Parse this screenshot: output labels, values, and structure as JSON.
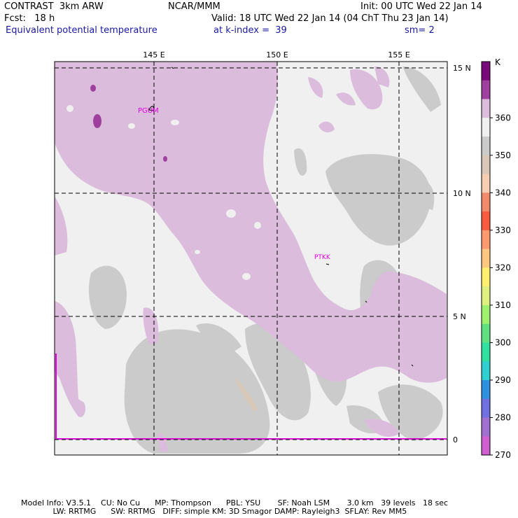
{
  "header": {
    "model": "CONTRAST  3km ARW",
    "forecast": "Fcst:   18 h",
    "center": "NCAR/MMM",
    "init": "Init: 00 UTC Wed 22 Jan 14",
    "valid": "Valid: 18 UTC Wed 22 Jan 14 (04 ChT Thu 23 Jan 14)",
    "field": "Equivalent potential temperature",
    "level": "at k-index =  39",
    "smoothing": "sm= 2"
  },
  "map": {
    "lon_labels": [
      "145 E",
      "150 E",
      "155 E"
    ],
    "lat_labels": [
      "15 N",
      "10 N",
      "5 N",
      "0"
    ],
    "stations": [
      "PGUM",
      "PTKK"
    ],
    "colors": {
      "frame": "#000000",
      "grid": "#000000",
      "equator_line": "#e000e0",
      "station_label": "#e000e0"
    }
  },
  "colorbar": {
    "unit": "K",
    "labels": [
      "360",
      "350",
      "340",
      "330",
      "320",
      "310",
      "300",
      "290",
      "280",
      "270"
    ],
    "colors": [
      "#7a0a7a",
      "#a0409e",
      "#dcbcdc",
      "#f0f0f0",
      "#cbcbcb",
      "#d8c8b8",
      "#f4cdb2",
      "#f08a6a",
      "#fa5c40",
      "#ff9a70",
      "#ffc880",
      "#fff070",
      "#e0f080",
      "#a0f070",
      "#60e080",
      "#30e0a0",
      "#30d0d0",
      "#3090e0",
      "#7070e0",
      "#a070d0",
      "#d060d0"
    ]
  },
  "footer": {
    "line1": "Model Info: V3.5.1    CU: No Cu      MP: Thompson      PBL: YSU       SF: Noah LSM       3.0 km   39 levels   18 sec",
    "line2": "             LW: RRTMG      SW: RRTMG   DIFF: simple KM: 3D Smagor DAMP: Rayleigh3  SFLAY: Rev MM5"
  }
}
